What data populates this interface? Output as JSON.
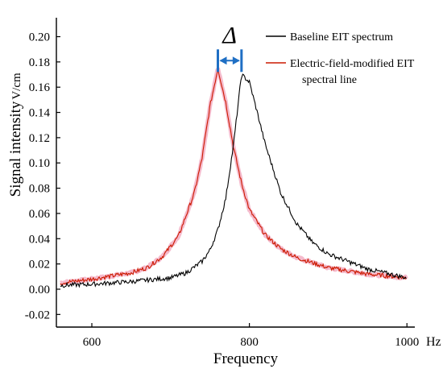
{
  "chart_data": {
    "type": "line",
    "title": "",
    "xlabel": "Frequency",
    "xunit": "Hz",
    "ylabel": "Signal intensity",
    "yunit": "V/cm",
    "xlim": [
      555,
      1010
    ],
    "ylim": [
      -0.03,
      0.215
    ],
    "xticks": [
      {
        "value": 600,
        "label": "600"
      },
      {
        "value": 800,
        "label": "800"
      },
      {
        "value": 1000,
        "label": "1000"
      }
    ],
    "yticks": [
      {
        "value": -0.02,
        "label": "-0.02"
      },
      {
        "value": 0.0,
        "label": "0.00"
      },
      {
        "value": 0.02,
        "label": "0.02"
      },
      {
        "value": 0.04,
        "label": "0.04"
      },
      {
        "value": 0.06,
        "label": "0.06"
      },
      {
        "value": 0.08,
        "label": "0.08"
      },
      {
        "value": 0.1,
        "label": "0.10"
      },
      {
        "value": 0.12,
        "label": "0.12"
      },
      {
        "value": 0.14,
        "label": "0.14"
      },
      {
        "value": 0.16,
        "label": "0.16"
      },
      {
        "value": 0.18,
        "label": "0.18"
      },
      {
        "value": 0.2,
        "label": "0.20"
      }
    ],
    "grid": false,
    "legend_position": "top-right",
    "series": [
      {
        "name": "Baseline EIT spectrum",
        "color": "#000000",
        "peak_x": 790,
        "x": [
          560,
          600,
          650,
          700,
          720,
          740,
          750,
          760,
          770,
          780,
          790,
          800,
          810,
          820,
          840,
          860,
          880,
          900,
          950,
          1000
        ],
        "y": [
          0.003,
          0.004,
          0.006,
          0.009,
          0.013,
          0.022,
          0.031,
          0.047,
          0.072,
          0.115,
          0.17,
          0.164,
          0.14,
          0.115,
          0.076,
          0.052,
          0.037,
          0.028,
          0.016,
          0.009
        ]
      },
      {
        "name": "Electric-field-modified EIT spectral line",
        "color": "#cc1a00",
        "halo_color": "#f4b3c6",
        "peak_x": 760,
        "x": [
          560,
          600,
          650,
          670,
          690,
          710,
          730,
          740,
          750,
          760,
          770,
          780,
          790,
          800,
          820,
          840,
          860,
          900,
          950,
          1000
        ],
        "y": [
          0.005,
          0.008,
          0.013,
          0.017,
          0.026,
          0.042,
          0.076,
          0.104,
          0.145,
          0.175,
          0.148,
          0.112,
          0.084,
          0.063,
          0.043,
          0.032,
          0.025,
          0.017,
          0.012,
          0.009
        ]
      }
    ],
    "annotations": [
      {
        "type": "double-arrow",
        "label": "Δ",
        "from_x": 760,
        "to_x": 790,
        "y": 0.181,
        "color": "#1f6fc4"
      }
    ]
  }
}
